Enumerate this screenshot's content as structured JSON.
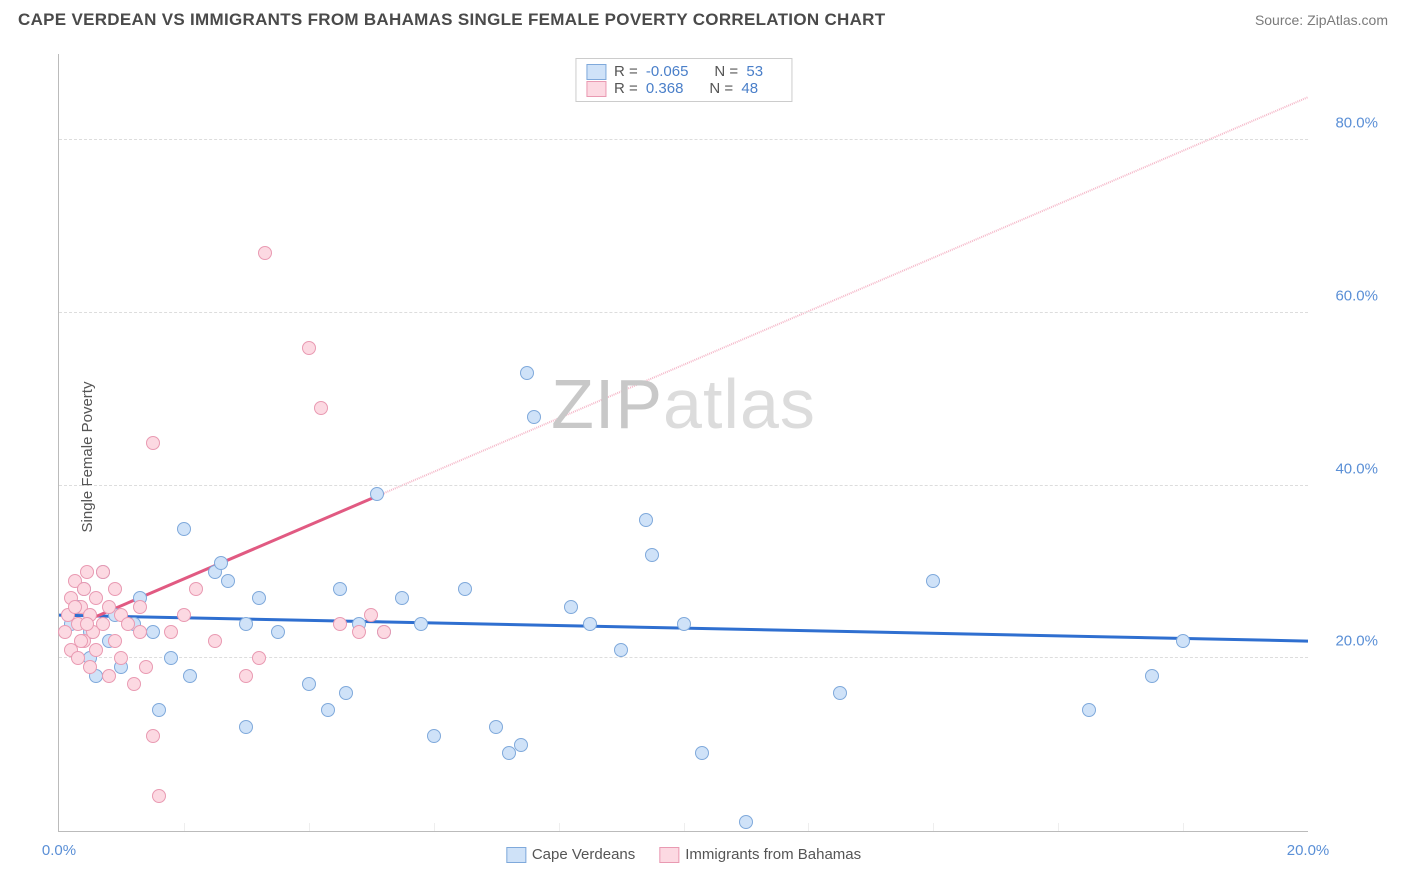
{
  "title": "CAPE VERDEAN VS IMMIGRANTS FROM BAHAMAS SINGLE FEMALE POVERTY CORRELATION CHART",
  "source": "Source: ZipAtlas.com",
  "y_axis_label": "Single Female Poverty",
  "watermark": {
    "part1": "ZIP",
    "part2": "atlas"
  },
  "chart": {
    "type": "scatter",
    "xlim": [
      0,
      20
    ],
    "ylim": [
      0,
      90
    ],
    "x_ticks": [
      0,
      20
    ],
    "x_tick_labels": [
      "0.0%",
      "20.0%"
    ],
    "x_minor_ticks": [
      2,
      4,
      6,
      8,
      10,
      12,
      14,
      16,
      18
    ],
    "y_ticks": [
      20,
      40,
      60,
      80
    ],
    "y_tick_labels": [
      "20.0%",
      "40.0%",
      "60.0%",
      "80.0%"
    ],
    "background_color": "#ffffff",
    "grid_color": "#dddddd",
    "series": [
      {
        "name": "Cape Verdeans",
        "marker_fill": "#cfe2f8",
        "marker_stroke": "#7fa9db",
        "marker_size": 14,
        "trend_color": "#2f6fd0",
        "trend_dash_color": "#a8c5ee",
        "trend_solid_xmax": 20,
        "trend": {
          "x1": 0,
          "y1": 25,
          "x2": 20,
          "y2": 22
        },
        "R": "-0.065",
        "N": "53",
        "points": [
          [
            0.2,
            24
          ],
          [
            0.3,
            26
          ],
          [
            0.4,
            28
          ],
          [
            0.5,
            23
          ],
          [
            0.5,
            20
          ],
          [
            0.6,
            18
          ],
          [
            0.7,
            30
          ],
          [
            0.8,
            22
          ],
          [
            0.9,
            25
          ],
          [
            1.0,
            19
          ],
          [
            1.2,
            24
          ],
          [
            1.3,
            27
          ],
          [
            1.5,
            23
          ],
          [
            1.6,
            14
          ],
          [
            1.8,
            20
          ],
          [
            2.0,
            35
          ],
          [
            2.1,
            18
          ],
          [
            2.5,
            30
          ],
          [
            2.6,
            31
          ],
          [
            2.7,
            29
          ],
          [
            3.0,
            24
          ],
          [
            3.0,
            12
          ],
          [
            3.2,
            27
          ],
          [
            3.5,
            23
          ],
          [
            4.0,
            17
          ],
          [
            4.3,
            14
          ],
          [
            4.5,
            28
          ],
          [
            4.6,
            16
          ],
          [
            4.8,
            24
          ],
          [
            5.1,
            39
          ],
          [
            5.2,
            23
          ],
          [
            5.5,
            27
          ],
          [
            5.8,
            24
          ],
          [
            6.0,
            11
          ],
          [
            6.5,
            28
          ],
          [
            7.0,
            12
          ],
          [
            7.2,
            9
          ],
          [
            7.4,
            10
          ],
          [
            7.5,
            53
          ],
          [
            7.6,
            48
          ],
          [
            8.2,
            26
          ],
          [
            8.5,
            24
          ],
          [
            9.0,
            21
          ],
          [
            9.4,
            36
          ],
          [
            9.5,
            32
          ],
          [
            10.0,
            24
          ],
          [
            10.3,
            9
          ],
          [
            11.0,
            1
          ],
          [
            12.5,
            16
          ],
          [
            14.0,
            29
          ],
          [
            16.5,
            14
          ],
          [
            17.5,
            18
          ],
          [
            18.0,
            22
          ]
        ]
      },
      {
        "name": "Immigrants from Bahamas",
        "marker_fill": "#fcd9e2",
        "marker_stroke": "#e99ab2",
        "marker_size": 14,
        "trend_color": "#e15a82",
        "trend_dash_color": "#f5b8c9",
        "trend_solid_xmax": 5.2,
        "trend": {
          "x1": 0,
          "y1": 23,
          "x2": 20,
          "y2": 85
        },
        "R": "0.368",
        "N": "48",
        "points": [
          [
            0.1,
            23
          ],
          [
            0.15,
            25
          ],
          [
            0.2,
            27
          ],
          [
            0.2,
            21
          ],
          [
            0.25,
            29
          ],
          [
            0.3,
            24
          ],
          [
            0.3,
            20
          ],
          [
            0.35,
            26
          ],
          [
            0.4,
            22
          ],
          [
            0.4,
            28
          ],
          [
            0.45,
            30
          ],
          [
            0.5,
            25
          ],
          [
            0.5,
            19
          ],
          [
            0.55,
            23
          ],
          [
            0.6,
            27
          ],
          [
            0.6,
            21
          ],
          [
            0.7,
            24
          ],
          [
            0.7,
            30
          ],
          [
            0.8,
            26
          ],
          [
            0.8,
            18
          ],
          [
            0.9,
            28
          ],
          [
            0.9,
            22
          ],
          [
            1.0,
            25
          ],
          [
            1.0,
            20
          ],
          [
            1.1,
            24
          ],
          [
            1.2,
            17
          ],
          [
            1.3,
            26
          ],
          [
            1.4,
            19
          ],
          [
            1.5,
            11
          ],
          [
            1.6,
            4
          ],
          [
            1.5,
            45
          ],
          [
            1.8,
            23
          ],
          [
            2.0,
            25
          ],
          [
            2.5,
            22
          ],
          [
            3.0,
            18
          ],
          [
            3.2,
            20
          ],
          [
            3.3,
            67
          ],
          [
            4.0,
            56
          ],
          [
            4.5,
            24
          ],
          [
            4.8,
            23
          ],
          [
            5.0,
            25
          ],
          [
            4.2,
            49
          ],
          [
            5.2,
            23
          ],
          [
            2.2,
            28
          ],
          [
            1.3,
            23
          ],
          [
            0.45,
            24
          ],
          [
            0.35,
            22
          ],
          [
            0.25,
            26
          ]
        ]
      }
    ]
  },
  "legend_top": {
    "rows": [
      {
        "swatch_fill": "#cfe2f8",
        "swatch_stroke": "#7fa9db",
        "R": "-0.065",
        "N": "53"
      },
      {
        "swatch_fill": "#fcd9e2",
        "swatch_stroke": "#e99ab2",
        "R": "0.368",
        "N": "48"
      }
    ]
  },
  "legend_bottom": {
    "items": [
      {
        "swatch_fill": "#cfe2f8",
        "swatch_stroke": "#7fa9db",
        "label": "Cape Verdeans"
      },
      {
        "swatch_fill": "#fcd9e2",
        "swatch_stroke": "#e99ab2",
        "label": "Immigrants from Bahamas"
      }
    ]
  }
}
